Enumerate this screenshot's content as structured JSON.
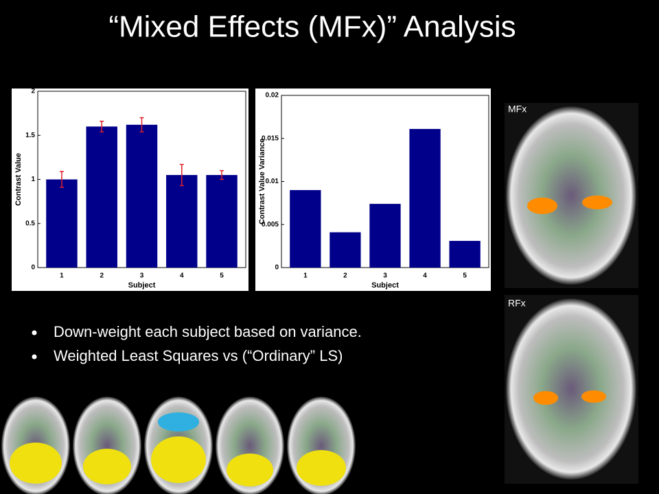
{
  "title": "“Mixed Effects (MFx)” Analysis",
  "bullets": [
    "Down-weight each subject based on variance.",
    "Weighted Least Squares vs (“Ordinary” LS)"
  ],
  "image_labels": [
    "MFx",
    "RFx"
  ],
  "chart_data": [
    {
      "type": "bar",
      "xlabel": "Subject",
      "ylabel": "Contrast Value",
      "categories": [
        "1",
        "2",
        "3",
        "4",
        "5"
      ],
      "values": [
        1.0,
        1.6,
        1.62,
        1.05,
        1.05
      ],
      "errors": [
        0.09,
        0.06,
        0.08,
        0.12,
        0.05
      ],
      "color": "#00008b",
      "error_color": "#e0202a",
      "ylim": [
        0,
        2
      ],
      "yticks": [
        0,
        0.5,
        1,
        1.5,
        2
      ]
    },
    {
      "type": "bar",
      "xlabel": "Subject",
      "ylabel": "Contrast Value Variance",
      "categories": [
        "1",
        "2",
        "3",
        "4",
        "5"
      ],
      "values": [
        0.009,
        0.0041,
        0.0074,
        0.0161,
        0.0031
      ],
      "color": "#00008b",
      "ylim": [
        0,
        0.02
      ],
      "yticks": [
        0,
        0.005,
        0.01,
        0.015,
        0.02
      ]
    }
  ]
}
